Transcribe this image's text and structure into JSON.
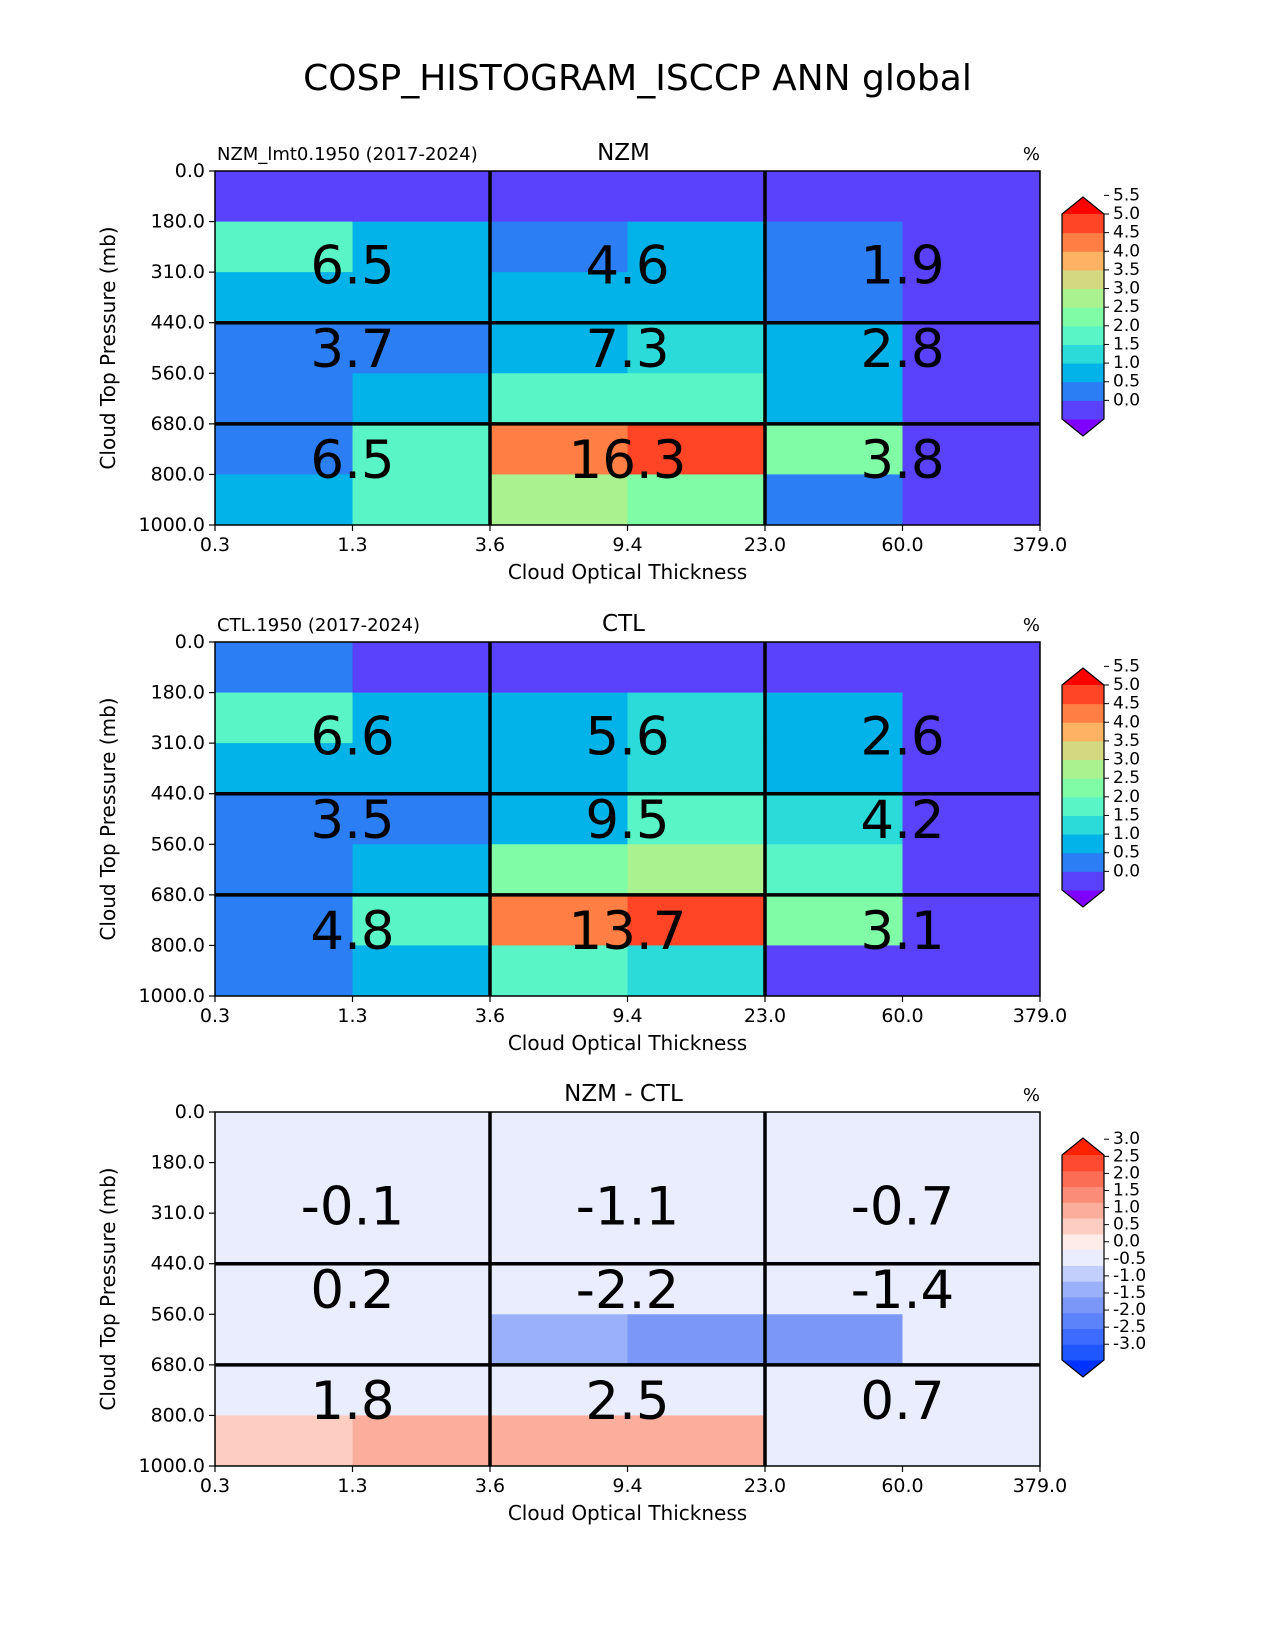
{
  "figure_title": "COSP_HISTOGRAM_ISCCP ANN global",
  "chart_data": [
    {
      "type": "heatmap",
      "title": "NZM",
      "left_title": "NZM_lmt0.1950 (2017-2024)",
      "units": "%",
      "xlabel": "Cloud Optical Thickness",
      "ylabel": "Cloud Top Pressure (mb)",
      "x_ticks": [
        "0.3",
        "1.3",
        "3.6",
        "9.4",
        "23.0",
        "60.0",
        "379.0"
      ],
      "y_ticks": [
        "0.0",
        "180.0",
        "310.0",
        "440.0",
        "560.0",
        "680.0",
        "800.0",
        "1000.0"
      ],
      "cell_values_approx": [
        [
          0.2,
          0.2,
          0.2,
          0.2,
          0.2,
          0.2
        ],
        [
          2.2,
          1.4,
          0.8,
          1.4,
          0.8,
          0.2
        ],
        [
          1.4,
          1.4,
          1.4,
          1.4,
          0.8,
          0.2
        ],
        [
          0.8,
          0.8,
          1.4,
          1.8,
          1.4,
          0.2
        ],
        [
          0.8,
          1.4,
          2.2,
          2.2,
          1.4,
          0.2
        ],
        [
          0.8,
          2.2,
          4.8,
          5.3,
          2.8,
          0.2
        ],
        [
          1.4,
          2.2,
          3.3,
          2.8,
          0.8,
          0.2
        ]
      ],
      "block_labels": [
        [
          "6.5",
          "4.6",
          "1.9"
        ],
        [
          "3.7",
          "7.3",
          "2.8"
        ],
        [
          "6.5",
          "16.3",
          "3.8"
        ]
      ],
      "colorbar": {
        "ticks": [
          "5.5",
          "5.0",
          "4.5",
          "4.0",
          "3.5",
          "3.0",
          "2.5",
          "2.0",
          "1.5",
          "1.0",
          "0.5",
          "0.0"
        ],
        "range": [
          0.0,
          5.5
        ],
        "colors": [
          "#5a41fb",
          "#2b7ef4",
          "#01b3e8",
          "#2bdbd9",
          "#5af5c6",
          "#80fca7",
          "#aaf28f",
          "#d3d981",
          "#fdb264",
          "#ff7e44",
          "#ff4526"
        ],
        "extend_low": "#8000ff",
        "extend_high": "#ff0000"
      }
    },
    {
      "type": "heatmap",
      "title": "CTL",
      "left_title": "CTL.1950 (2017-2024)",
      "units": "%",
      "xlabel": "Cloud Optical Thickness",
      "ylabel": "Cloud Top Pressure (mb)",
      "x_ticks": [
        "0.3",
        "1.3",
        "3.6",
        "9.4",
        "23.0",
        "60.0",
        "379.0"
      ],
      "y_ticks": [
        "0.0",
        "180.0",
        "310.0",
        "440.0",
        "560.0",
        "680.0",
        "800.0",
        "1000.0"
      ],
      "cell_values_approx": [
        [
          0.8,
          0.2,
          0.2,
          0.2,
          0.2,
          0.2
        ],
        [
          2.2,
          1.4,
          1.4,
          1.8,
          1.4,
          0.2
        ],
        [
          1.4,
          1.4,
          1.4,
          1.8,
          1.4,
          0.2
        ],
        [
          0.8,
          0.8,
          1.4,
          2.2,
          1.8,
          0.2
        ],
        [
          0.8,
          1.4,
          2.8,
          3.3,
          2.2,
          0.2
        ],
        [
          0.8,
          2.2,
          4.8,
          5.3,
          2.8,
          0.2
        ],
        [
          0.8,
          1.4,
          2.2,
          1.8,
          0.2,
          0.2
        ]
      ],
      "block_labels": [
        [
          "6.6",
          "5.6",
          "2.6"
        ],
        [
          "3.5",
          "9.5",
          "4.2"
        ],
        [
          "4.8",
          "13.7",
          "3.1"
        ]
      ],
      "colorbar": {
        "ticks": [
          "5.5",
          "5.0",
          "4.5",
          "4.0",
          "3.5",
          "3.0",
          "2.5",
          "2.0",
          "1.5",
          "1.0",
          "0.5",
          "0.0"
        ],
        "range": [
          0.0,
          5.5
        ],
        "colors": [
          "#5a41fb",
          "#2b7ef4",
          "#01b3e8",
          "#2bdbd9",
          "#5af5c6",
          "#80fca7",
          "#aaf28f",
          "#d3d981",
          "#fdb264",
          "#ff7e44",
          "#ff4526"
        ],
        "extend_low": "#8000ff",
        "extend_high": "#ff0000"
      }
    },
    {
      "type": "heatmap",
      "title": "NZM - CTL",
      "left_title": "",
      "units": "%",
      "xlabel": "Cloud Optical Thickness",
      "ylabel": "Cloud Top Pressure (mb)",
      "x_ticks": [
        "0.3",
        "1.3",
        "3.6",
        "9.4",
        "23.0",
        "60.0",
        "379.0"
      ],
      "y_ticks": [
        "0.0",
        "180.0",
        "310.0",
        "440.0",
        "560.0",
        "680.0",
        "800.0",
        "1000.0"
      ],
      "cell_values_approx": [
        [
          -0.2,
          -0.2,
          -0.2,
          -0.2,
          0.2,
          0.2
        ],
        [
          0.2,
          -0.2,
          -0.2,
          -0.2,
          -0.2,
          -0.2
        ],
        [
          0.2,
          0.2,
          -0.2,
          -0.2,
          -0.2,
          -0.2
        ],
        [
          0.2,
          0.2,
          -0.2,
          -0.2,
          -0.2,
          0.2
        ],
        [
          0.2,
          -0.2,
          -0.7,
          -1.2,
          -1.2,
          -0.2
        ],
        [
          0.2,
          0.2,
          0.2,
          0.2,
          0.2,
          0.2
        ],
        [
          0.7,
          1.2,
          1.2,
          1.2,
          0.2,
          0.2
        ]
      ],
      "block_labels": [
        [
          "-0.1",
          "-1.1",
          "-0.7"
        ],
        [
          "0.2",
          "-2.2",
          "-1.4"
        ],
        [
          "1.8",
          "2.5",
          "0.7"
        ]
      ],
      "colorbar": {
        "ticks": [
          "3.0",
          "2.5",
          "2.0",
          "1.5",
          "1.0",
          "0.5",
          "0.0",
          "-0.5",
          "-1.0",
          "-1.5",
          "-2.0",
          "-2.5",
          "-3.0"
        ],
        "range": [
          -3.0,
          3.0
        ],
        "colors": [
          "#1f57ff",
          "#3d6bff",
          "#5d83fb",
          "#7b98f9",
          "#9ab0f8",
          "#c2cefb",
          "#e9edfd",
          "#feece8",
          "#fdcdc1",
          "#fbae9c",
          "#fb8c77",
          "#fc6d55",
          "#fe4a30"
        ],
        "extend_low": "#0033ff",
        "extend_high": "#ff2200"
      }
    }
  ]
}
